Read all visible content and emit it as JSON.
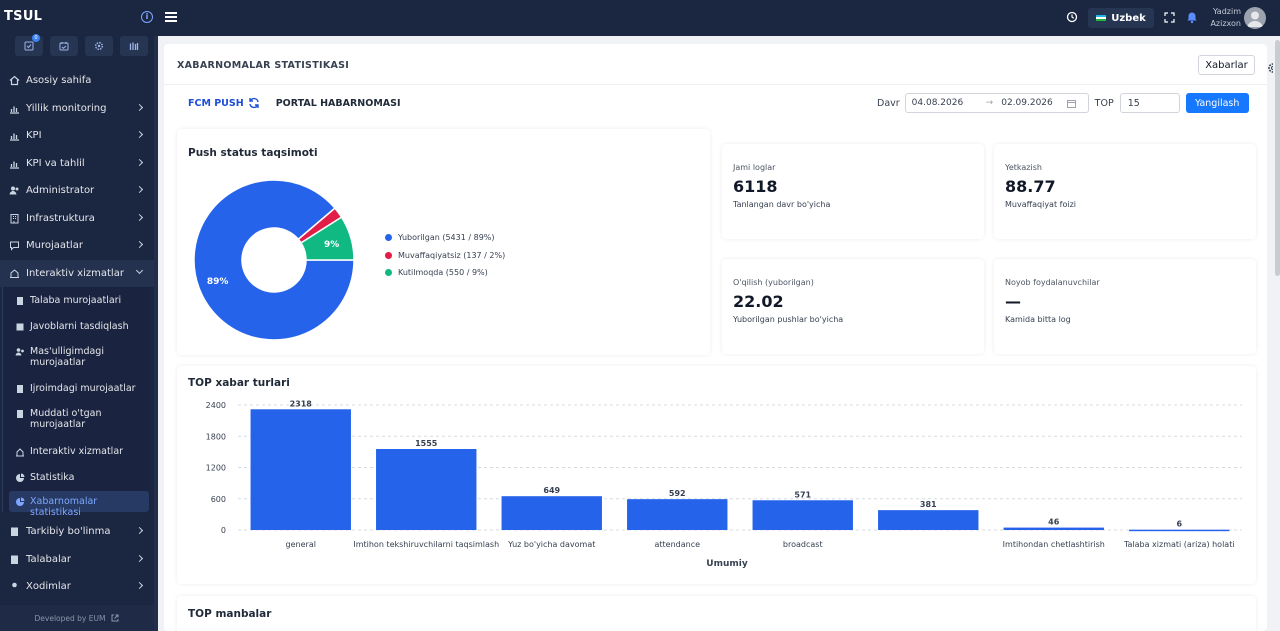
{
  "app": {
    "brand": "TSUL"
  },
  "header": {
    "language": "Uzbek",
    "user_first": "Yadzim",
    "user_last": "Azizxon"
  },
  "quick_icons": {
    "badge_count": "0"
  },
  "sidebar": {
    "items": [
      {
        "label": "Asosiy sahifa",
        "icon": "home-icon"
      },
      {
        "label": "Yillik monitoring",
        "icon": "bar-chart-icon"
      },
      {
        "label": "KPI",
        "icon": "bar-chart-icon"
      },
      {
        "label": "KPI va tahlil",
        "icon": "bar-chart-icon"
      },
      {
        "label": "Administrator",
        "icon": "users-icon"
      },
      {
        "label": "Infrastruktura",
        "icon": "building-icon"
      },
      {
        "label": "Murojaatlar",
        "icon": "message-icon"
      },
      {
        "label": "Interaktiv xizmatlar",
        "icon": "services-icon"
      }
    ],
    "submenu": [
      {
        "label": "Talaba murojaatlari"
      },
      {
        "label": "Javoblarni tasdiqlash"
      },
      {
        "label": "Mas'ulligimdagi murojaatlar"
      },
      {
        "label": "Ijroimdagi murojaatlar"
      },
      {
        "label": "Muddati o'tgan murojaatlar"
      },
      {
        "label": "Interaktiv xizmatlar"
      },
      {
        "label": "Statistika"
      },
      {
        "label": "Xabarnomalar statistikasi"
      }
    ],
    "items_after": [
      {
        "label": "Tarkibiy bo'linma"
      },
      {
        "label": "Talabalar"
      },
      {
        "label": "Xodimlar"
      }
    ],
    "footer": "Developed by EUM"
  },
  "page": {
    "title": "XABARNOMALAR STATISTIKASI",
    "xabarlar_button": "Xabarlar",
    "tabs": {
      "active": "FCM PUSH",
      "inactive": "PORTAL HABARNOMASI"
    },
    "filters": {
      "period_label": "Davr",
      "date_from": "04.08.2026",
      "date_to": "02.09.2026",
      "top_label": "TOP",
      "top_value": "15",
      "refresh_button": "Yangilash"
    }
  },
  "push_status": {
    "title": "Push status taqsimoti",
    "legend": [
      {
        "label": "Yuborilgan (5431 / 89%)",
        "color": "#2563eb"
      },
      {
        "label": "Muvaffaqiyatsiz (137 / 2%)",
        "color": "#e11d48"
      },
      {
        "label": "Kutilmoqda (550 / 9%)",
        "color": "#10b981"
      }
    ],
    "slice_labels": [
      "89%",
      "9%"
    ]
  },
  "stats": [
    {
      "label": "Jami loglar",
      "value": "6118",
      "sub": "Tanlangan davr bo'yicha"
    },
    {
      "label": "Yetkazish",
      "value": "88.77",
      "sub": "Muvaffaqiyat foizi"
    },
    {
      "label": "O'qilish (yuborilgan)",
      "value": "22.02",
      "sub": "Yuborilgan pushlar bo'yicha"
    },
    {
      "label": "Noyob foydalanuvchilar",
      "value": "—",
      "sub": "Kamida bitta log"
    }
  ],
  "top_types": {
    "title": "TOP xabar turlari"
  },
  "top_sources": {
    "title": "TOP manbalar"
  },
  "chart_data": [
    {
      "type": "pie",
      "title": "Push status taqsimoti",
      "categories": [
        "Yuborilgan",
        "Muvaffaqiyatsiz",
        "Kutilmoqda"
      ],
      "values": [
        5431,
        137,
        550
      ],
      "colors": [
        "#2563eb",
        "#e11d48",
        "#10b981"
      ],
      "donut": true
    },
    {
      "type": "bar",
      "title": "TOP xabar turlari",
      "xlabel": "Umumiy",
      "ylabel": "",
      "categories": [
        "general",
        "Imtihon tekshiruvchilarni taqsimlash",
        "Yuz bo'yicha davomat",
        "attendance",
        "broadcast",
        "",
        "Imtihondan chetlashtirish",
        "Talaba xizmati (ariza) holati"
      ],
      "values": [
        2318,
        1555,
        649,
        592,
        571,
        381,
        46,
        6
      ],
      "ylim": [
        0,
        2400
      ],
      "yticks": [
        0,
        600,
        1200,
        1800,
        2400
      ],
      "color": "#2563eb",
      "grid": true
    }
  ]
}
